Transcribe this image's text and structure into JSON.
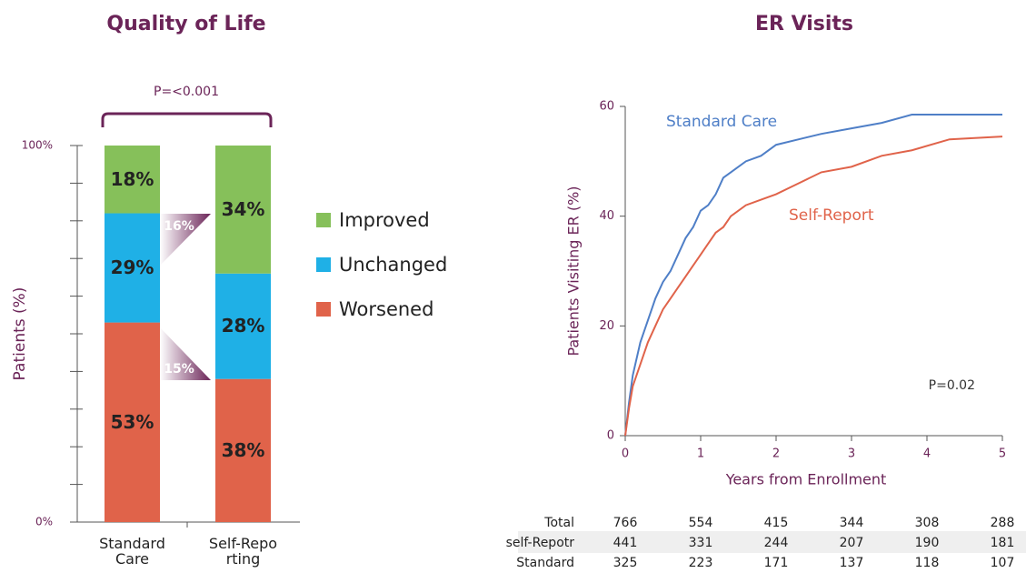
{
  "chart_data": [
    {
      "type": "stacked-bar",
      "title": "Quality of Life",
      "ylabel": "Patients (%)",
      "categories": [
        "Standard Care",
        "Self-Reporting"
      ],
      "series": [
        {
          "name": "Worsened",
          "color": "#e0634a",
          "values": [
            53,
            38
          ],
          "value_labels": [
            "53%",
            "38%"
          ]
        },
        {
          "name": "Unchanged",
          "color": "#1fb0e6",
          "values": [
            29,
            28
          ],
          "value_labels": [
            "29%",
            "28%"
          ]
        },
        {
          "name": "Improved",
          "color": "#86c05a",
          "values": [
            18,
            34
          ],
          "value_labels": [
            "18%",
            "34%"
          ]
        }
      ],
      "ylim": [
        0,
        100
      ],
      "yticks": [
        {
          "value": 0,
          "label": "0%"
        },
        {
          "value": 100,
          "label": "100%"
        }
      ],
      "minor_yticks": [
        10,
        20,
        30,
        40,
        50,
        60,
        70,
        80,
        90
      ],
      "annotations": [
        "P=<0.001",
        "16%",
        "15%"
      ],
      "legend": "right"
    },
    {
      "type": "line",
      "title": "ER Visits",
      "xlabel": "Years from Enrollment",
      "ylabel": "Patients Visiting ER (%)",
      "x": [
        0,
        0.05,
        0.1,
        0.2,
        0.3,
        0.4,
        0.5,
        0.6,
        0.7,
        0.8,
        0.9,
        1.0,
        1.1,
        1.2,
        1.3,
        1.4,
        1.6,
        1.8,
        2.0,
        2.3,
        2.6,
        3.0,
        3.4,
        3.8,
        4.3,
        5.0
      ],
      "series": [
        {
          "name": "Standard Care",
          "color": "#4f7fc7",
          "values": [
            0,
            6,
            11,
            17,
            21,
            25,
            28,
            30,
            33,
            36,
            38,
            41,
            42,
            44,
            47,
            48,
            50,
            51,
            53,
            54,
            55,
            56,
            57,
            58.5,
            58.5,
            58.5
          ]
        },
        {
          "name": "Self-Report",
          "color": "#e0634a",
          "values": [
            0,
            5,
            9,
            13,
            17,
            20,
            23,
            25,
            27,
            29,
            31,
            33,
            35,
            37,
            38,
            40,
            42,
            43,
            44,
            46,
            48,
            49,
            51,
            52,
            54,
            54.5
          ]
        }
      ],
      "xlim": [
        0,
        5
      ],
      "xticks": [
        0,
        1,
        2,
        3,
        4,
        5
      ],
      "ylim": [
        0,
        60
      ],
      "yticks": [
        0,
        20,
        40,
        60
      ],
      "annotations": [
        "P=0.02"
      ],
      "risk_table": [
        {
          "label": "Total",
          "values": [
            766,
            554,
            415,
            344,
            308,
            288
          ]
        },
        {
          "label": "self-Repotr",
          "values": [
            441,
            331,
            244,
            207,
            190,
            181
          ]
        },
        {
          "label": "Standard",
          "values": [
            325,
            223,
            171,
            137,
            118,
            107
          ]
        }
      ]
    }
  ]
}
